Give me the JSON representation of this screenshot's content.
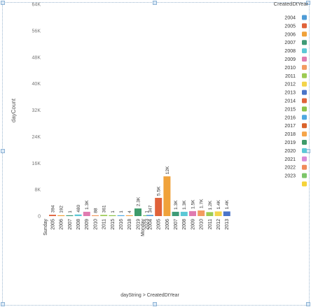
{
  "chart_data": {
    "type": "bar",
    "ylabel": "dayCount",
    "xlabel": "dayString > CreatedDtYear",
    "ylim": [
      0,
      64000
    ],
    "yticks": [
      {
        "value": 0,
        "label": "0"
      },
      {
        "value": 8000,
        "label": "8K"
      },
      {
        "value": 16000,
        "label": "16K"
      },
      {
        "value": 24000,
        "label": "24K"
      },
      {
        "value": 32000,
        "label": "32K"
      },
      {
        "value": 40000,
        "label": "40K"
      },
      {
        "value": 48000,
        "label": "48K"
      },
      {
        "value": 56000,
        "label": "56K"
      },
      {
        "value": 64000,
        "label": "64K"
      }
    ],
    "grid": false,
    "legend": {
      "title": "CreatedDtYear",
      "placement": "right",
      "entries": [
        {
          "name": "2004",
          "color": "#4e9bd6"
        },
        {
          "name": "2005",
          "color": "#e0623a"
        },
        {
          "name": "2006",
          "color": "#f0a23a"
        },
        {
          "name": "2007",
          "color": "#3e9b77"
        },
        {
          "name": "2008",
          "color": "#5bc8d6"
        },
        {
          "name": "2009",
          "color": "#e07bb0"
        },
        {
          "name": "2010",
          "color": "#f39b61"
        },
        {
          "name": "2011",
          "color": "#9ccb53"
        },
        {
          "name": "2012",
          "color": "#f3d44b"
        },
        {
          "name": "2013",
          "color": "#4a74c8"
        },
        {
          "name": "2014",
          "color": "#e0623a"
        },
        {
          "name": "2015",
          "color": "#8bc34a"
        },
        {
          "name": "2016",
          "color": "#4fa8e0"
        },
        {
          "name": "2017",
          "color": "#d9622b"
        },
        {
          "name": "2018",
          "color": "#f5a54a"
        },
        {
          "name": "2019",
          "color": "#3e9b6a"
        },
        {
          "name": "2020",
          "color": "#5bc8d6"
        },
        {
          "name": "2021",
          "color": "#d88ad8"
        },
        {
          "name": "2022",
          "color": "#f08a5a"
        },
        {
          "name": "2023",
          "color": "#7cc66a"
        },
        {
          "name": "",
          "color": "#f5d33a"
        }
      ]
    },
    "groups": [
      {
        "name": "Sunday",
        "bars": [
          {
            "year": "2005",
            "value": 394,
            "label": "394",
            "color": "#e0623a"
          },
          {
            "year": "2006",
            "value": 192,
            "label": "192",
            "color": "#f0a23a"
          },
          {
            "year": "2007",
            "value": 1,
            "label": "1",
            "color": "#3e9b77"
          },
          {
            "year": "2008",
            "value": 480,
            "label": "480",
            "color": "#5bc8d6"
          },
          {
            "year": "2009",
            "value": 1300,
            "label": "1.3K",
            "color": "#e07bb0"
          },
          {
            "year": "2010",
            "value": 88,
            "label": "88",
            "color": "#f39b61"
          },
          {
            "year": "2011",
            "value": 361,
            "label": "361",
            "color": "#9ccb53"
          },
          {
            "year": "2015",
            "value": 1,
            "label": "1",
            "color": "#8bc34a"
          },
          {
            "year": "2016",
            "value": 1,
            "label": "1",
            "color": "#4fa8e0"
          },
          {
            "year": "2018",
            "value": 4,
            "label": "4",
            "color": "#f5a54a"
          },
          {
            "year": "2019",
            "value": 2300,
            "label": "2.3K",
            "color": "#3e9b6a"
          },
          {
            "year": "2023",
            "value": 1,
            "label": "1",
            "color": "#7cc66a"
          }
        ]
      },
      {
        "name": "Monday",
        "bars": [
          {
            "year": "2004",
            "value": 347,
            "label": "347",
            "color": "#4e9bd6"
          },
          {
            "year": "2005",
            "value": 5500,
            "label": "5.5K",
            "color": "#e0623a"
          },
          {
            "year": "2006",
            "value": 12000,
            "label": "12K",
            "color": "#f0a23a"
          },
          {
            "year": "2007",
            "value": 1300,
            "label": "1.3K",
            "color": "#3e9b77"
          },
          {
            "year": "2008",
            "value": 1300,
            "label": "1.3K",
            "color": "#5bc8d6"
          },
          {
            "year": "2009",
            "value": 1500,
            "label": "1.5K",
            "color": "#e07bb0"
          },
          {
            "year": "2010",
            "value": 1700,
            "label": "1.7K",
            "color": "#f39b61"
          },
          {
            "year": "2011",
            "value": 1200,
            "label": "1.2K",
            "color": "#9ccb53"
          },
          {
            "year": "2012",
            "value": 1400,
            "label": "1.4K",
            "color": "#f3d44b"
          },
          {
            "year": "2013",
            "value": 1400,
            "label": "1.4K",
            "color": "#4a74c8"
          }
        ]
      }
    ]
  }
}
